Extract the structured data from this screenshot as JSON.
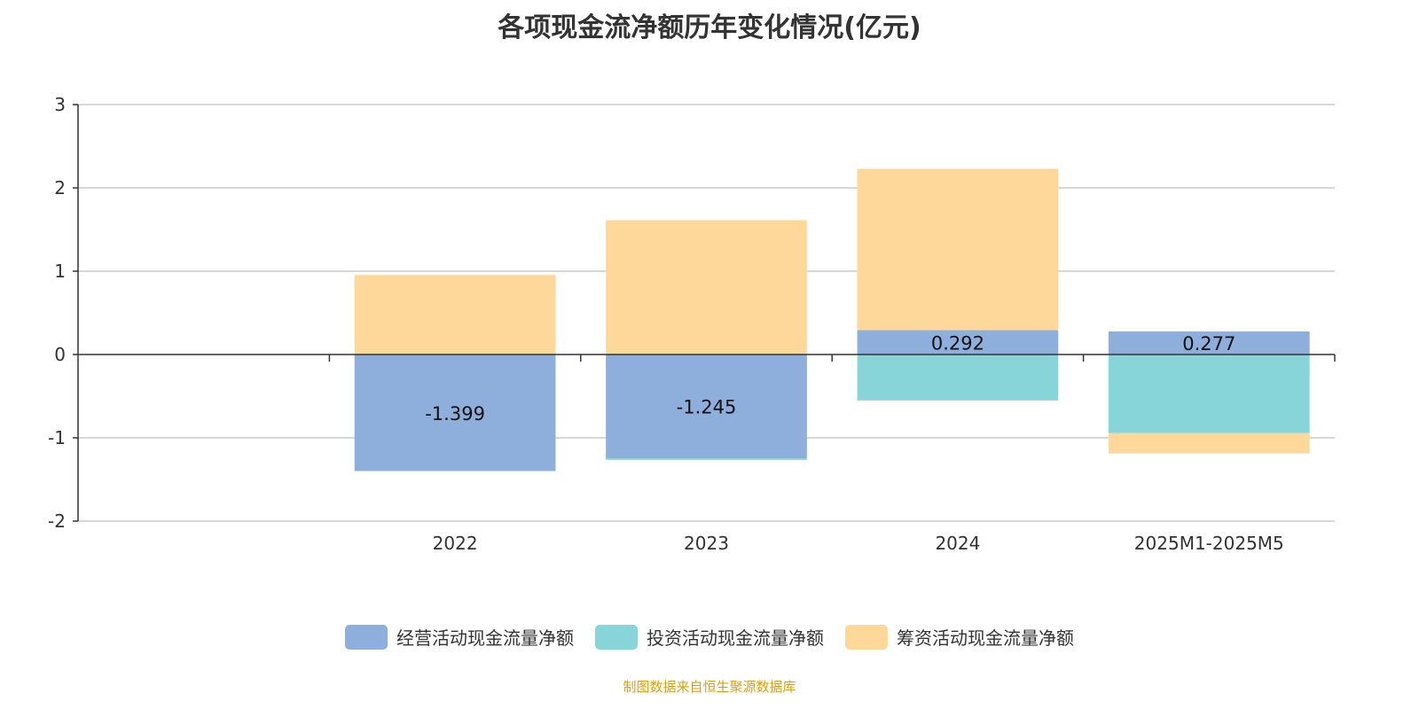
{
  "chart_data": {
    "type": "bar",
    "stacked": true,
    "title": "各项现金流净额历年变化情况(亿元)",
    "categories": [
      "",
      "2022",
      "2023",
      "2024",
      "2025M1-2025M5"
    ],
    "series": [
      {
        "name": "经营活动现金流量净额",
        "color": "#8eaedb",
        "values": [
          null,
          -1.399,
          -1.245,
          0.292,
          0.277
        ],
        "labels": [
          null,
          "-1.399",
          "-1.245",
          "0.292",
          "0.277"
        ]
      },
      {
        "name": "投资活动现金流量净额",
        "color": "#88d5d9",
        "values": [
          null,
          0.003,
          -0.02,
          -0.552,
          -0.944
        ]
      },
      {
        "name": "筹资活动现金流量净额",
        "color": "#fed89b",
        "values": [
          null,
          0.951,
          1.611,
          1.937,
          -0.244
        ]
      }
    ],
    "ylim": [
      -2,
      3
    ],
    "yticks": [
      "-2",
      "-1",
      "0",
      "1",
      "2",
      "3"
    ],
    "grid": true,
    "legend_position": "bottom",
    "xlabel": "",
    "ylabel": ""
  },
  "source": "制图数据来自恒生聚源数据库"
}
